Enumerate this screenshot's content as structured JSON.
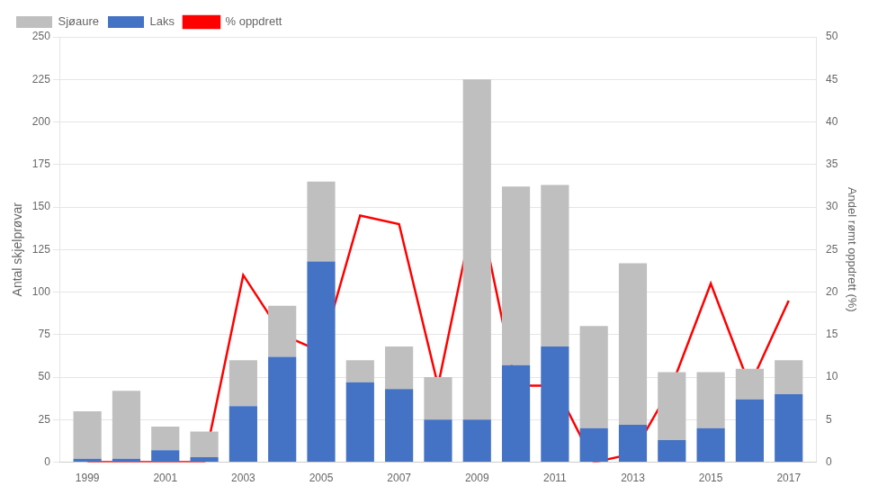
{
  "chart_data": {
    "type": "bar",
    "x": [
      1999,
      2000,
      2001,
      2002,
      2003,
      2004,
      2005,
      2006,
      2007,
      2008,
      2009,
      2010,
      2011,
      2012,
      2013,
      2014,
      2015,
      2016,
      2017
    ],
    "xlim": [
      1998.3,
      2017.7
    ],
    "xticks": [
      1999,
      2001,
      2003,
      2005,
      2007,
      2009,
      2011,
      2013,
      2015,
      2017
    ],
    "ylabel": "Antal skjelprøvar",
    "ylim": [
      0,
      250
    ],
    "yticks": [
      0,
      25,
      50,
      75,
      100,
      125,
      150,
      175,
      200,
      225,
      250
    ],
    "y2label": "Andel rømt oppdrett (%)",
    "y2lim": [
      0,
      50
    ],
    "y2ticks": [
      0,
      5,
      10,
      15,
      20,
      25,
      30,
      35,
      40,
      45,
      50
    ],
    "stacked": true,
    "grid": true,
    "legend": "upper left",
    "series": [
      {
        "name": "Laks",
        "color": "#4472C4",
        "values": [
          2,
          2,
          7,
          3,
          33,
          62,
          118,
          47,
          43,
          25,
          25,
          57,
          68,
          20,
          22,
          13,
          20,
          37,
          40
        ]
      },
      {
        "name": "Sjøaure",
        "color": "#BFBFBF",
        "values": [
          28,
          40,
          14,
          15,
          27,
          30,
          47,
          13,
          25,
          25,
          200,
          105,
          95,
          60,
          95,
          40,
          33,
          18,
          20
        ]
      },
      {
        "name": "% oppdrett",
        "type": "line",
        "axis": "y2",
        "color": "#FF0000",
        "values": [
          0,
          0,
          0,
          0,
          22,
          15,
          13,
          29,
          28,
          9,
          31,
          9,
          9,
          0,
          1,
          9,
          21,
          9,
          19
        ]
      }
    ]
  }
}
